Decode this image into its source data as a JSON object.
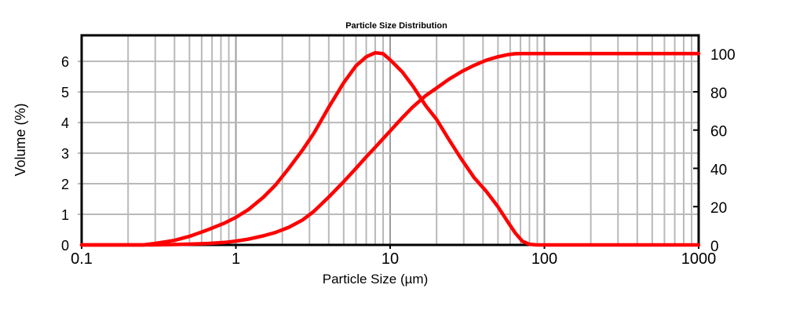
{
  "chart_data": {
    "type": "line",
    "title": "Particle Size Distribution",
    "xlabel": "Particle Size (µm)",
    "ylabel_left": "Volume (%)",
    "x_scale": "log",
    "grid": true,
    "legend": "none",
    "xlim": [
      0.1,
      1000
    ],
    "x_tick_values": [
      0.1,
      1,
      10,
      100,
      1000
    ],
    "x_tick_labels": [
      "0.1",
      "1",
      "10",
      "100",
      "1000"
    ],
    "y_left": {
      "min": 0,
      "max": 6.85,
      "ticks": [
        0,
        1,
        2,
        3,
        4,
        5,
        6
      ]
    },
    "y_right": {
      "min": 0,
      "max": 109.5,
      "ticks": [
        0,
        20,
        40,
        60,
        80,
        100
      ]
    },
    "x": [
      0.1,
      0.15,
      0.2,
      0.25,
      0.3,
      0.4,
      0.5,
      0.6,
      0.7,
      0.85,
      1,
      1.2,
      1.5,
      1.8,
      2.2,
      2.7,
      3.2,
      4,
      5,
      6,
      7,
      8,
      9,
      10,
      12,
      14,
      17,
      20,
      24,
      29,
      35,
      42,
      50,
      58,
      65,
      72,
      80,
      90,
      100,
      150,
      200,
      300,
      500,
      700,
      1000
    ],
    "series": [
      {
        "name": "volume_percent",
        "axis": "left",
        "color": "#ff0000",
        "values": [
          0,
          0,
          0,
          0,
          0.05,
          0.15,
          0.28,
          0.42,
          0.55,
          0.72,
          0.9,
          1.15,
          1.55,
          1.95,
          2.5,
          3.1,
          3.65,
          4.5,
          5.3,
          5.85,
          6.15,
          6.28,
          6.25,
          6.05,
          5.65,
          5.2,
          4.55,
          4.1,
          3.45,
          2.8,
          2.2,
          1.75,
          1.25,
          0.75,
          0.38,
          0.12,
          0.02,
          0,
          0,
          0,
          0,
          0,
          0,
          0,
          0
        ]
      },
      {
        "name": "cumulative_undersize_percent",
        "axis": "right",
        "color": "#ff0000",
        "values": [
          0,
          0,
          0,
          0,
          0.05,
          0.2,
          0.4,
          0.6,
          0.85,
          1.3,
          2,
          3,
          4.7,
          6.5,
          9.2,
          13,
          17.5,
          25,
          33,
          40,
          46,
          51,
          55.5,
          59.5,
          66.5,
          72,
          78,
          82,
          86.5,
          90.5,
          93.8,
          96.5,
          98.3,
          99.4,
          99.9,
          100,
          100,
          100,
          100,
          100,
          100,
          100,
          100,
          100,
          100
        ]
      }
    ]
  },
  "colors": {
    "background": "#ffffff",
    "grid_minor": "#b9b9b9",
    "grid_major": "#9c9c9c",
    "axis": "#000000",
    "text": "#000000",
    "curve": "#ff0000"
  }
}
